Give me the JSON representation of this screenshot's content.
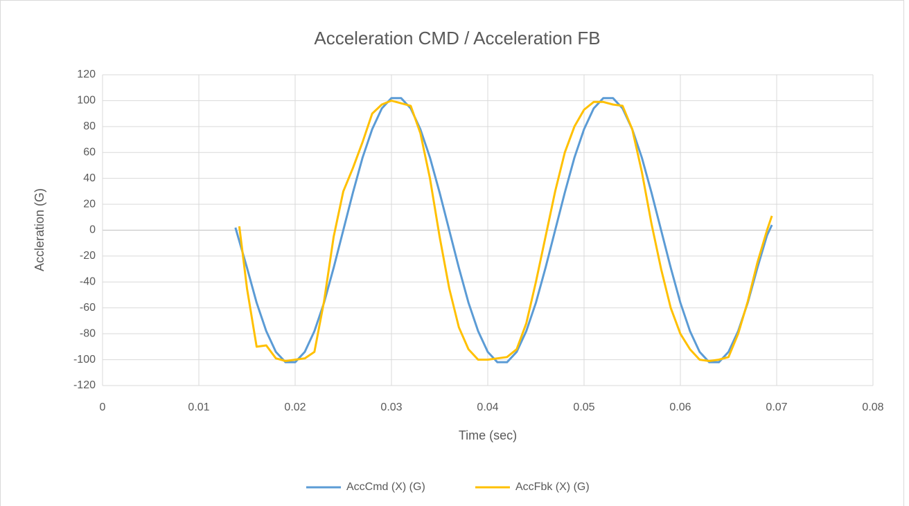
{
  "chart_data": {
    "type": "line",
    "title": "Acceleration CMD / Acceleration FB",
    "x_label": "Time (sec)",
    "y_label": "Accleration (G)",
    "xlim": [
      0,
      0.08
    ],
    "xticks": [
      0,
      0.01,
      0.02,
      0.03,
      0.04,
      0.05,
      0.06,
      0.07,
      0.08
    ],
    "ylim": [
      -120,
      120
    ],
    "yticks": [
      -120,
      -100,
      -80,
      -60,
      -40,
      -20,
      0,
      20,
      40,
      60,
      80,
      100,
      120
    ],
    "grid": true,
    "legend": "bottom",
    "series": [
      {
        "name": "AccCmd (X) (G)",
        "color": "#5b9bd5",
        "x": [
          0.0138,
          0.015,
          0.016,
          0.017,
          0.018,
          0.019,
          0.02,
          0.021,
          0.022,
          0.023,
          0.024,
          0.025,
          0.026,
          0.027,
          0.028,
          0.029,
          0.03,
          0.031,
          0.032,
          0.033,
          0.034,
          0.035,
          0.036,
          0.037,
          0.038,
          0.039,
          0.04,
          0.041,
          0.042,
          0.043,
          0.044,
          0.045,
          0.046,
          0.047,
          0.048,
          0.049,
          0.05,
          0.051,
          0.052,
          0.053,
          0.054,
          0.055,
          0.056,
          0.057,
          0.058,
          0.059,
          0.06,
          0.061,
          0.062,
          0.063,
          0.064,
          0.065,
          0.066,
          0.067,
          0.068,
          0.069,
          0.0695
        ],
        "values": [
          2,
          -29,
          -56,
          -78,
          -94,
          -102,
          -102,
          -94,
          -78,
          -56,
          -29,
          0,
          29,
          56,
          78,
          94,
          102,
          102,
          94,
          78,
          56,
          29,
          0,
          -29,
          -56,
          -78,
          -94,
          -102,
          -102,
          -94,
          -78,
          -56,
          -29,
          0,
          29,
          56,
          78,
          94,
          102,
          102,
          94,
          78,
          56,
          29,
          0,
          -29,
          -56,
          -78,
          -94,
          -102,
          -102,
          -94,
          -78,
          -56,
          -29,
          -4,
          4
        ]
      },
      {
        "name": "AccFbk (X) (G)",
        "color": "#ffc000",
        "x": [
          0.0142,
          0.015,
          0.016,
          0.017,
          0.018,
          0.019,
          0.02,
          0.021,
          0.022,
          0.023,
          0.024,
          0.025,
          0.026,
          0.027,
          0.028,
          0.029,
          0.03,
          0.031,
          0.032,
          0.033,
          0.034,
          0.035,
          0.036,
          0.037,
          0.038,
          0.039,
          0.04,
          0.041,
          0.042,
          0.043,
          0.044,
          0.045,
          0.046,
          0.047,
          0.048,
          0.049,
          0.05,
          0.051,
          0.052,
          0.053,
          0.054,
          0.055,
          0.056,
          0.057,
          0.058,
          0.059,
          0.06,
          0.061,
          0.062,
          0.063,
          0.064,
          0.065,
          0.066,
          0.067,
          0.068,
          0.069,
          0.0695
        ],
        "values": [
          3,
          -45,
          -90,
          -89,
          -99,
          -101,
          -100,
          -99,
          -94,
          -55,
          -5,
          30,
          48,
          68,
          90,
          97,
          100,
          98,
          96,
          75,
          40,
          -5,
          -45,
          -75,
          -92,
          -100,
          -100,
          -99,
          -98,
          -92,
          -72,
          -40,
          -5,
          30,
          60,
          80,
          93,
          99,
          99,
          97,
          96,
          78,
          45,
          5,
          -30,
          -60,
          -80,
          -92,
          -100,
          -101,
          -100,
          -98,
          -80,
          -55,
          -25,
          0,
          11
        ]
      }
    ]
  }
}
